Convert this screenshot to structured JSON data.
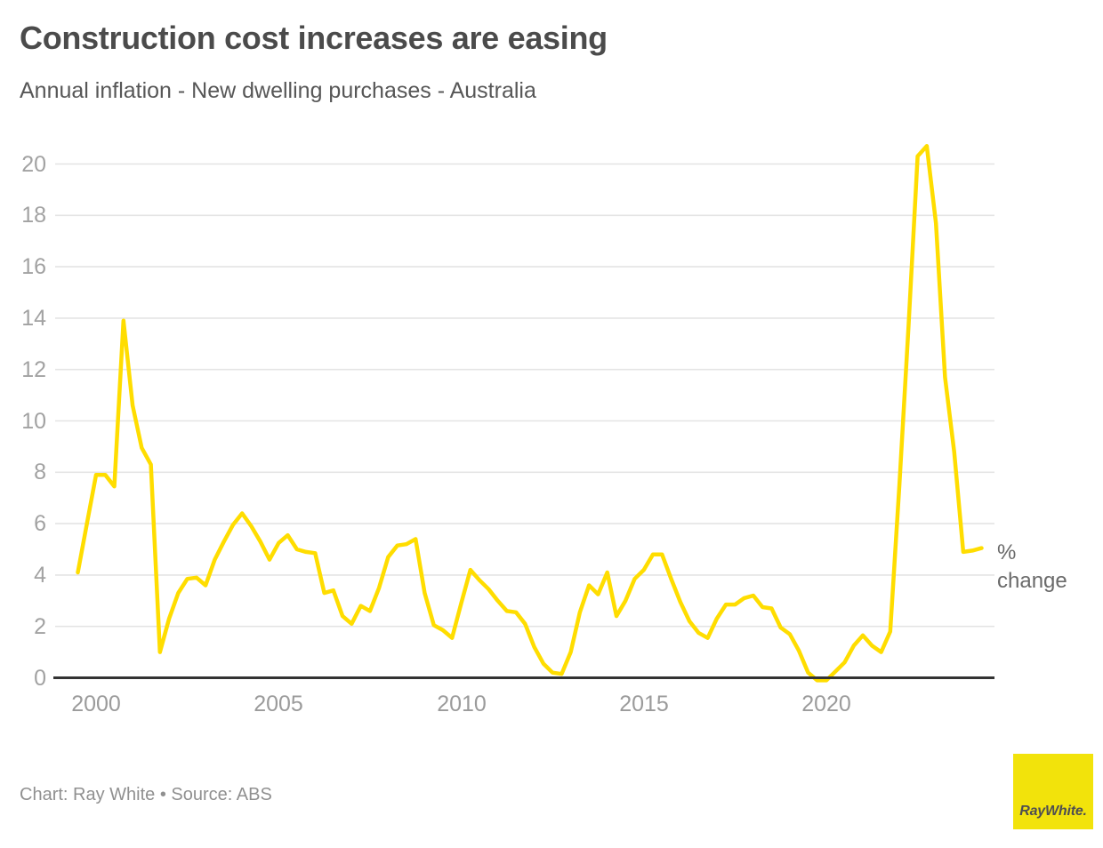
{
  "header": {
    "title": "Construction cost increases are easing",
    "subtitle": "Annual inflation - New dwelling purchases - Australia"
  },
  "chart_data": {
    "type": "line",
    "title": "Construction cost increases are easing",
    "subtitle": "Annual inflation - New dwelling purchases - Australia",
    "ylabel": "% change",
    "xlabel": "",
    "x_unit": "year, quarterly observations",
    "x_start": 1999.5,
    "x_step": 0.25,
    "x_ticks": [
      2000,
      2005,
      2010,
      2015,
      2020
    ],
    "y_ticks": [
      0,
      2,
      4,
      6,
      8,
      10,
      12,
      14,
      16,
      18,
      20
    ],
    "xlim": [
      1999.2,
      2024.7
    ],
    "ylim": [
      -0.2,
      21
    ],
    "grid": "horizontal",
    "legend_position": "none",
    "series": [
      {
        "name": "New dwelling purchases - Australia (annual % change)",
        "color": "#ffdd00",
        "values": [
          4.1,
          6.0,
          7.9,
          7.9,
          7.45,
          13.9,
          10.6,
          8.95,
          8.3,
          1.0,
          2.3,
          3.3,
          3.85,
          3.9,
          3.6,
          4.6,
          5.3,
          5.95,
          6.4,
          5.9,
          5.3,
          4.6,
          5.25,
          5.55,
          5.0,
          4.9,
          4.85,
          3.3,
          3.4,
          2.4,
          2.1,
          2.8,
          2.6,
          3.5,
          4.7,
          5.15,
          5.2,
          5.4,
          3.3,
          2.05,
          1.85,
          1.55,
          2.9,
          4.2,
          3.8,
          3.45,
          3.0,
          2.6,
          2.55,
          2.1,
          1.2,
          0.55,
          0.2,
          0.15,
          1.0,
          2.55,
          3.6,
          3.25,
          4.1,
          2.4,
          3.0,
          3.85,
          4.2,
          4.8,
          4.8,
          3.85,
          2.95,
          2.2,
          1.75,
          1.55,
          2.3,
          2.85,
          2.85,
          3.1,
          3.2,
          2.75,
          2.7,
          1.95,
          1.7,
          1.05,
          0.2,
          -0.1,
          -0.1,
          0.25,
          0.6,
          1.25,
          1.65,
          1.25,
          1.0,
          1.8,
          7.5,
          13.7,
          20.3,
          20.7,
          17.7,
          11.7,
          8.8,
          4.9,
          4.95,
          5.05
        ]
      }
    ],
    "annotations": {
      "peak_value": 20.7,
      "peak_period": "2022",
      "last_value": 5.05
    }
  },
  "footer": {
    "credit": "Chart: Ray White • Source: ABS",
    "logo_text": "RayWhite."
  },
  "colors": {
    "line_yellow": "#ffdd00",
    "logo_yellow": "#f2e30b",
    "axis_line": "#333333",
    "gridline": "#e4e4e4",
    "title_gray": "#4b4b4b",
    "subtitle_gray": "#575757",
    "tick_gray": "#a2a2a2",
    "footer_gray": "#909090"
  }
}
